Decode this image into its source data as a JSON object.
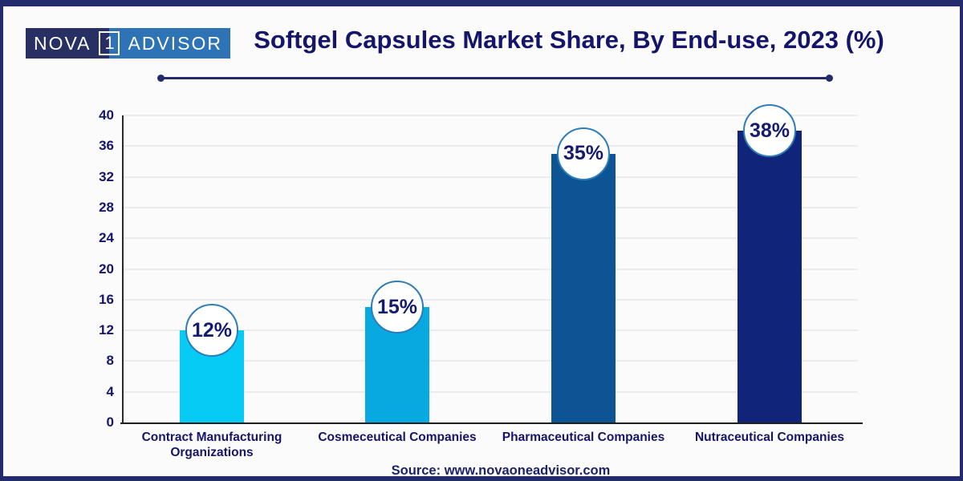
{
  "frame": {
    "border_color": "#232b6d",
    "background": "#fcfbfb"
  },
  "logo": {
    "nova": "NOVA",
    "one": "1",
    "advisor": "ADVISOR",
    "dark_bg": "#282f63",
    "light_bg": "#2e73b5",
    "text_color": "#ffffff"
  },
  "header": {
    "title": "Softgel Capsules Market Share, By End-use, 2023 (%)",
    "title_color": "#14156b"
  },
  "chart_data": {
    "type": "bar",
    "title": "Softgel Capsules Market Share, By End-use, 2023 (%)",
    "categories": [
      "Contract Manufacturing Organizations",
      "Cosmeceutical Companies",
      "Pharmaceutical Companies",
      "Nutraceutical Companies"
    ],
    "values": [
      12,
      15,
      35,
      38
    ],
    "data_labels": [
      "12%",
      "15%",
      "35%",
      "38%"
    ],
    "bar_colors": [
      "#06cbf5",
      "#07a9e0",
      "#0d5494",
      "#10257a"
    ],
    "xlabel": "",
    "ylabel": "",
    "ylim": [
      0,
      40
    ],
    "yticks": [
      0,
      4,
      8,
      12,
      16,
      20,
      24,
      28,
      32,
      36,
      40
    ],
    "grid": true,
    "legend": "none",
    "label_bubble": {
      "fill": "#ffffff",
      "border": "#2e7cb8",
      "text_color": "#151b6e"
    }
  },
  "source": {
    "text": "Source: www.novaoneadvisor.com"
  }
}
